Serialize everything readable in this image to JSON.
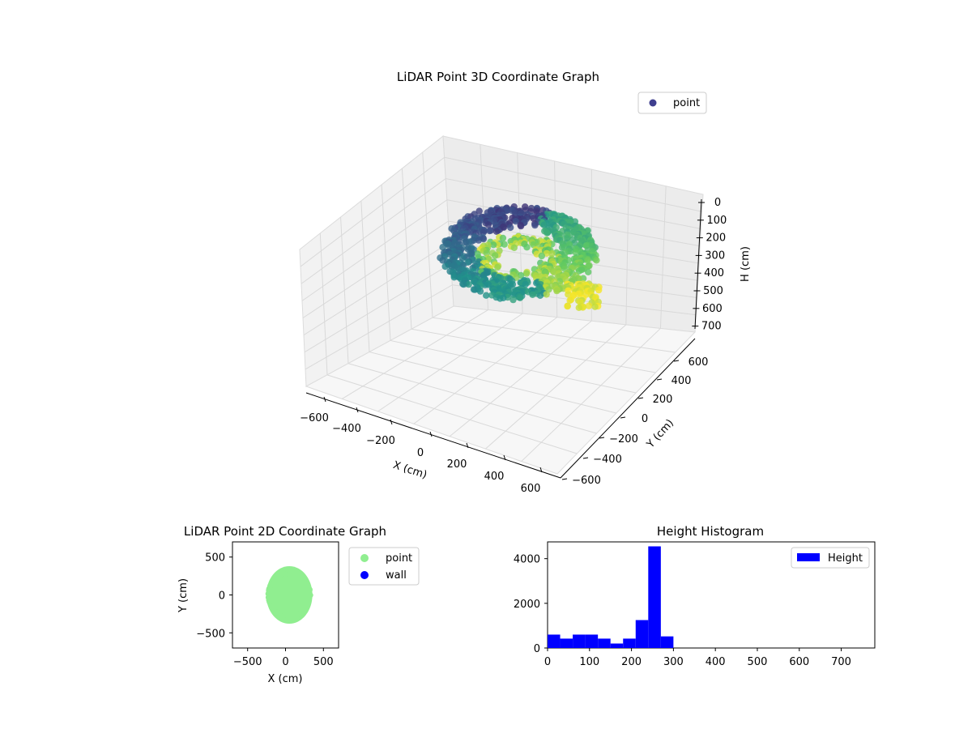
{
  "chart_data": [
    {
      "type": "scatter",
      "title": "LiDAR Point 3D Coordinate Graph",
      "xlabel": "X (cm)",
      "ylabel": "Y (cm)",
      "zlabel": "H (cm)",
      "xlim": [
        -650,
        650
      ],
      "ylim": [
        -650,
        650
      ],
      "zlim": [
        750,
        0
      ],
      "x_ticks": [
        "−600",
        "−400",
        "−200",
        "0",
        "200",
        "400",
        "600"
      ],
      "y_ticks": [
        "−600",
        "−400",
        "−200",
        "0",
        "200",
        "400",
        "600"
      ],
      "z_ticks": [
        "0",
        "100",
        "200",
        "300",
        "400",
        "500",
        "600",
        "700"
      ],
      "grid": true,
      "legend": {
        "entries": [
          "point"
        ],
        "placement": "top-right"
      },
      "series": [
        {
          "name": "point",
          "colormap": "viridis",
          "color_by": "height"
        }
      ]
    },
    {
      "type": "scatter",
      "title": "LiDAR Point 2D Coordinate Graph",
      "xlabel": "X (cm)",
      "ylabel": "Y (cm)",
      "xlim": [
        -700,
        700
      ],
      "ylim": [
        -700,
        700
      ],
      "x_ticks": [
        "−500",
        "0",
        "500"
      ],
      "y_ticks": [
        "−500",
        "0",
        "500"
      ],
      "legend": {
        "entries": [
          "point",
          "wall"
        ],
        "placement": "outside-right"
      },
      "series": [
        {
          "name": "point",
          "color": "#90ee90",
          "center": [
            50,
            0
          ],
          "radius_x": 200,
          "radius_y": 380
        },
        {
          "name": "wall",
          "color": "#0000ff",
          "points": []
        }
      ]
    },
    {
      "type": "bar",
      "title": "Height Histogram",
      "xlim": [
        0,
        780
      ],
      "ylim": [
        0,
        4750
      ],
      "x_ticks": [
        "0",
        "100",
        "200",
        "300",
        "400",
        "500",
        "600",
        "700"
      ],
      "y_ticks": [
        "0",
        "2000",
        "4000"
      ],
      "legend": {
        "entries": [
          "Height"
        ],
        "placement": "top-right"
      },
      "series": [
        {
          "name": "Height",
          "color": "#0000ff",
          "bins": [
            {
              "start": 0,
              "end": 30,
              "count": 600
            },
            {
              "start": 30,
              "end": 60,
              "count": 420
            },
            {
              "start": 60,
              "end": 90,
              "count": 600
            },
            {
              "start": 90,
              "end": 120,
              "count": 600
            },
            {
              "start": 120,
              "end": 150,
              "count": 420
            },
            {
              "start": 150,
              "end": 180,
              "count": 200
            },
            {
              "start": 180,
              "end": 210,
              "count": 420
            },
            {
              "start": 210,
              "end": 240,
              "count": 1250
            },
            {
              "start": 240,
              "end": 270,
              "count": 4550
            },
            {
              "start": 270,
              "end": 300,
              "count": 520
            }
          ]
        }
      ]
    }
  ],
  "colors": {
    "point2d": "#90ee90",
    "wall": "#0000ff",
    "hist": "#0000ff",
    "viridis": [
      "#440154",
      "#3b528b",
      "#21918c",
      "#5ec962",
      "#fde725"
    ]
  }
}
